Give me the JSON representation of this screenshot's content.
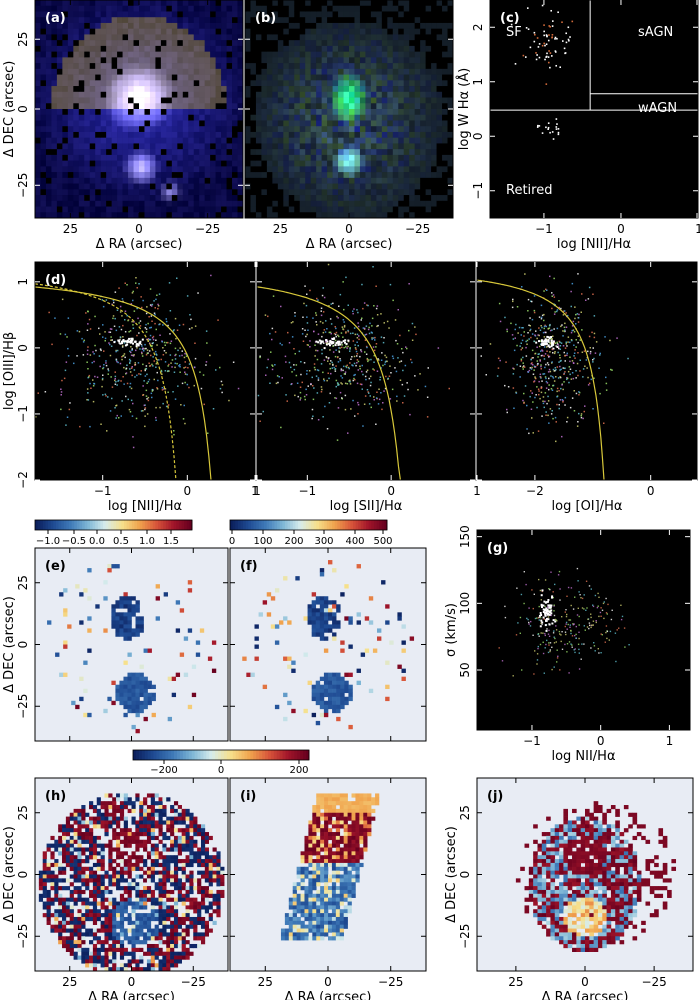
{
  "chart_data": {
    "type": "scatter",
    "panels": [
      {
        "id": "a",
        "label": "(a)",
        "kind": "image_rgb",
        "xlabel": "Δ RA (arcsec)",
        "ylabel": "Δ DEC (arcsec)",
        "xticks": [
          "25",
          "0",
          "−25"
        ],
        "yticks": [
          "25",
          "0",
          "−25"
        ],
        "xlim": [
          38,
          -38
        ],
        "ylim": [
          -38,
          38
        ]
      },
      {
        "id": "b",
        "label": "(b)",
        "kind": "image_rgb",
        "xlabel": "Δ RA (arcsec)",
        "ylabel": "",
        "xticks": [
          "25",
          "0",
          "−25"
        ],
        "yticks": [],
        "xlim": [
          38,
          -38
        ],
        "ylim": [
          -38,
          38
        ]
      },
      {
        "id": "c",
        "label": "(c)",
        "kind": "whan",
        "xlabel": "log [NII]/Hα",
        "ylabel": "log W Hα (Å)",
        "xticks": [
          "−1",
          "0",
          "1"
        ],
        "yticks": [
          "2",
          "1",
          "0",
          "−1"
        ],
        "xlim": [
          -1.7,
          1.0
        ],
        "ylim": [
          -1.5,
          2.5
        ],
        "regions": [
          "SF",
          "sAGN",
          "wAGN",
          "Retired"
        ],
        "lines": {
          "vertical_x": -0.4,
          "retired_y": 0.48,
          "wagn_y": 0.78
        }
      },
      {
        "id": "d",
        "label": "(d)",
        "kind": "bpt",
        "xlabel": "log [NII]/Hα",
        "ylabel": "log [OIII]/Hβ",
        "xticks": [
          "−1",
          "0",
          "1"
        ],
        "yticks": [
          "1",
          "0",
          "−1",
          "−2"
        ],
        "xlim": [
          -1.8,
          0.8
        ],
        "ylim": [
          -2.0,
          1.3
        ]
      },
      {
        "id": "d2",
        "label": "",
        "kind": "bpt",
        "xlabel": "log [SII]/Hα",
        "ylabel": "",
        "xticks": [
          "1",
          "−1",
          "0"
        ],
        "yticks": [],
        "xlim": [
          -1.6,
          1.0
        ],
        "ylim": [
          -2.0,
          1.3
        ]
      },
      {
        "id": "d3",
        "label": "",
        "kind": "bpt",
        "xlabel": "log [OI]/Hα",
        "ylabel": "",
        "xticks": [
          "1",
          "−2",
          "0"
        ],
        "yticks": [],
        "xlim": [
          -3.0,
          0.8
        ],
        "ylim": [
          -2.0,
          1.3
        ]
      },
      {
        "id": "e",
        "label": "(e)",
        "kind": "map",
        "ylabel": "Δ DEC (arcsec)",
        "yticks": [
          "25",
          "0",
          "−25"
        ],
        "colorbar": {
          "ticks": [
            "−1.0",
            "−0.5",
            "0.0",
            "0.5",
            "1.0",
            "1.5"
          ],
          "range": [
            -1.2,
            1.9
          ]
        }
      },
      {
        "id": "f",
        "label": "(f)",
        "kind": "map",
        "ylabel": "",
        "yticks": [],
        "colorbar": {
          "ticks": [
            "0",
            "100",
            "200",
            "300",
            "400",
            "500"
          ],
          "range": [
            0,
            510
          ]
        }
      },
      {
        "id": "g",
        "label": "(g)",
        "kind": "scatter",
        "xlabel": "log NII/Hα",
        "ylabel": "σ (km/s)",
        "xticks": [
          "−1",
          "0",
          "1"
        ],
        "yticks": [
          "150",
          "100",
          "50"
        ],
        "xlim": [
          -1.8,
          1.3
        ],
        "ylim": [
          5,
          155
        ]
      },
      {
        "id": "h",
        "label": "(h)",
        "kind": "velocity_map",
        "xlabel": "Δ RA (arcsec)",
        "ylabel": "Δ DEC (arcsec)",
        "xticks": [
          "25",
          "0",
          "−25"
        ],
        "yticks": [
          "25",
          "0",
          "−25"
        ]
      },
      {
        "id": "i",
        "label": "(i)",
        "kind": "velocity_map",
        "xlabel": "Δ RA (arcsec)",
        "ylabel": "",
        "xticks": [
          "25",
          "0",
          "−25"
        ],
        "yticks": []
      },
      {
        "id": "j",
        "label": "(j)",
        "kind": "velocity_map",
        "xlabel": "Δ RA (arcsec)",
        "ylabel": "Δ DEC (arcsec)",
        "xticks": [
          "25",
          "0",
          "−25"
        ],
        "yticks": [
          "25",
          "0",
          "−25"
        ]
      }
    ],
    "velocity_colorbar": {
      "ticks": [
        "−200",
        "0",
        "200"
      ],
      "range": [
        -250,
        250
      ]
    },
    "colormap": [
      "#0b1f5c",
      "#1f4b93",
      "#3f7ab8",
      "#7eb6d6",
      "#d6ecec",
      "#f6e08c",
      "#f0a44e",
      "#d8553a",
      "#a1152a",
      "#67001f"
    ]
  }
}
